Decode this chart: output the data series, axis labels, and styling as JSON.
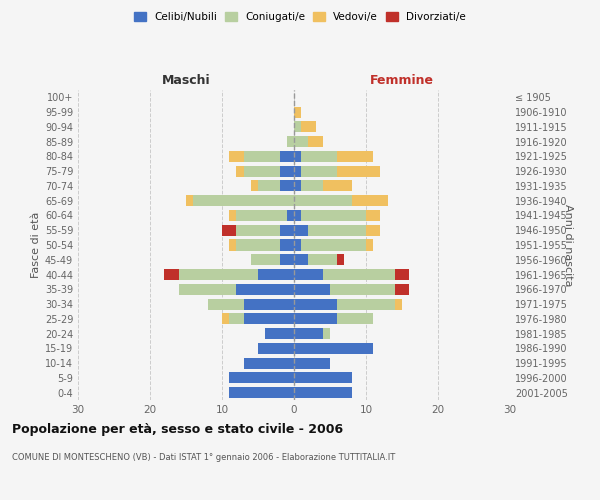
{
  "age_groups": [
    "100+",
    "95-99",
    "90-94",
    "85-89",
    "80-84",
    "75-79",
    "70-74",
    "65-69",
    "60-64",
    "55-59",
    "50-54",
    "45-49",
    "40-44",
    "35-39",
    "30-34",
    "25-29",
    "20-24",
    "15-19",
    "10-14",
    "5-9",
    "0-4"
  ],
  "birth_years": [
    "≤ 1905",
    "1906-1910",
    "1911-1915",
    "1916-1920",
    "1921-1925",
    "1926-1930",
    "1931-1935",
    "1936-1940",
    "1941-1945",
    "1946-1950",
    "1951-1955",
    "1956-1960",
    "1961-1965",
    "1966-1970",
    "1971-1975",
    "1976-1980",
    "1981-1985",
    "1986-1990",
    "1991-1995",
    "1996-2000",
    "2001-2005"
  ],
  "maschi": {
    "celibi": [
      0,
      0,
      0,
      0,
      2,
      2,
      2,
      0,
      1,
      2,
      2,
      2,
      5,
      8,
      7,
      7,
      4,
      5,
      7,
      9,
      9
    ],
    "coniugati": [
      0,
      0,
      0,
      1,
      5,
      5,
      3,
      14,
      7,
      6,
      6,
      4,
      11,
      8,
      5,
      2,
      0,
      0,
      0,
      0,
      0
    ],
    "vedovi": [
      0,
      0,
      0,
      0,
      2,
      1,
      1,
      1,
      1,
      0,
      1,
      0,
      0,
      0,
      0,
      1,
      0,
      0,
      0,
      0,
      0
    ],
    "divorziati": [
      0,
      0,
      0,
      0,
      0,
      0,
      0,
      0,
      0,
      2,
      0,
      0,
      2,
      0,
      0,
      0,
      0,
      0,
      0,
      0,
      0
    ]
  },
  "femmine": {
    "nubili": [
      0,
      0,
      0,
      0,
      1,
      1,
      1,
      0,
      1,
      2,
      1,
      2,
      4,
      5,
      6,
      6,
      4,
      11,
      5,
      8,
      8
    ],
    "coniugate": [
      0,
      0,
      1,
      2,
      5,
      5,
      3,
      8,
      9,
      8,
      9,
      4,
      10,
      9,
      8,
      5,
      1,
      0,
      0,
      0,
      0
    ],
    "vedove": [
      0,
      1,
      2,
      2,
      5,
      6,
      4,
      5,
      2,
      2,
      1,
      0,
      0,
      0,
      1,
      0,
      0,
      0,
      0,
      0,
      0
    ],
    "divorziate": [
      0,
      0,
      0,
      0,
      0,
      0,
      0,
      0,
      0,
      0,
      0,
      1,
      2,
      2,
      0,
      0,
      0,
      0,
      0,
      0,
      0
    ]
  },
  "colors": {
    "celibi": "#4472c4",
    "coniugati": "#b8cfa0",
    "vedovi": "#f0c060",
    "divorziati": "#c0302a"
  },
  "title": "Popolazione per età, sesso e stato civile - 2006",
  "subtitle": "COMUNE DI MONTESCHENO (VB) - Dati ISTAT 1° gennaio 2006 - Elaborazione TUTTITALIA.IT",
  "xlabel_left": "Maschi",
  "xlabel_right": "Femmine",
  "ylabel_left": "Fasce di età",
  "ylabel_right": "Anni di nascita",
  "xlim": 30,
  "bg_color": "#f5f5f5",
  "grid_color": "#cccccc"
}
